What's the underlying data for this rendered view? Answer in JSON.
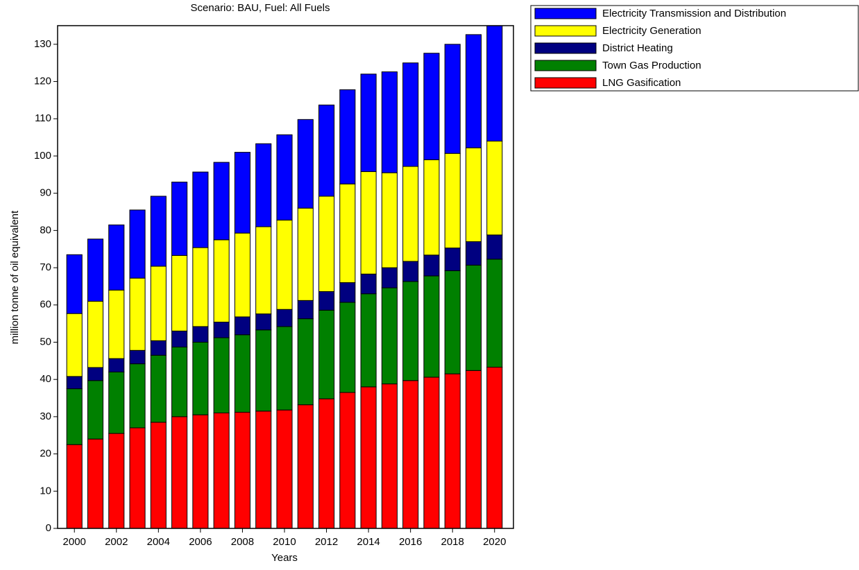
{
  "chart_data": {
    "type": "stacked_bar",
    "title": "Scenario: BAU,  Fuel: All Fuels",
    "x_label": "Years",
    "y_label": "million  tonne of oil equivalent",
    "x": [
      2000,
      2001,
      2002,
      2003,
      2004,
      2005,
      2006,
      2007,
      2008,
      2009,
      2010,
      2011,
      2012,
      2013,
      2014,
      2015,
      2016,
      2017,
      2018,
      2019,
      2020
    ],
    "xlim": [
      1999.2,
      2020.9
    ],
    "xticks": [
      2000,
      2002,
      2004,
      2006,
      2008,
      2010,
      2012,
      2014,
      2016,
      2018,
      2020
    ],
    "ylim": [
      0,
      135
    ],
    "yticks": [
      0,
      10,
      20,
      30,
      40,
      50,
      60,
      70,
      80,
      90,
      100,
      110,
      120,
      130
    ],
    "legend": "outside-top-right",
    "series": [
      {
        "name": "LNG Gasification",
        "color": "#ff0000",
        "values": [
          22.5,
          24,
          25.5,
          27,
          28.5,
          30,
          30.5,
          31,
          31.2,
          31.5,
          31.8,
          33.2,
          34.8,
          36.5,
          38,
          38.8,
          39.7,
          40.6,
          41.5,
          42.4,
          43.3
        ]
      },
      {
        "name": "Town Gas Production",
        "color": "#008000",
        "values": [
          15.0,
          15.7,
          16.5,
          17.2,
          18.0,
          18.7,
          19.5,
          20.2,
          20.8,
          21.8,
          22.4,
          23.1,
          23.8,
          24.2,
          25.0,
          25.8,
          26.6,
          27.2,
          27.7,
          28.3,
          29.0
        ]
      },
      {
        "name": "District Heating",
        "color": "#000080",
        "values": [
          3.3,
          3.5,
          3.6,
          3.6,
          3.9,
          4.3,
          4.2,
          4.2,
          4.8,
          4.3,
          4.6,
          4.9,
          5.0,
          5.3,
          5.3,
          5.4,
          5.4,
          5.6,
          6.1,
          6.3,
          6.5
        ]
      },
      {
        "name": "Electricity Generation",
        "color": "#ffff00",
        "values": [
          16.9,
          17.8,
          18.4,
          19.4,
          20.0,
          20.3,
          21.2,
          22.1,
          22.5,
          23.4,
          24.0,
          24.8,
          25.6,
          26.5,
          27.5,
          25.5,
          25.5,
          25.6,
          25.4,
          25.2,
          25.2
        ]
      },
      {
        "name": "Electricity Transmission and Distribution",
        "color": "#0000ff",
        "values": [
          15.8,
          16.7,
          17.5,
          18.3,
          18.8,
          19.7,
          20.3,
          20.8,
          21.7,
          22.3,
          22.9,
          23.8,
          24.5,
          25.3,
          26.2,
          27.1,
          27.8,
          28.6,
          29.3,
          30.4,
          31.0
        ]
      }
    ]
  }
}
